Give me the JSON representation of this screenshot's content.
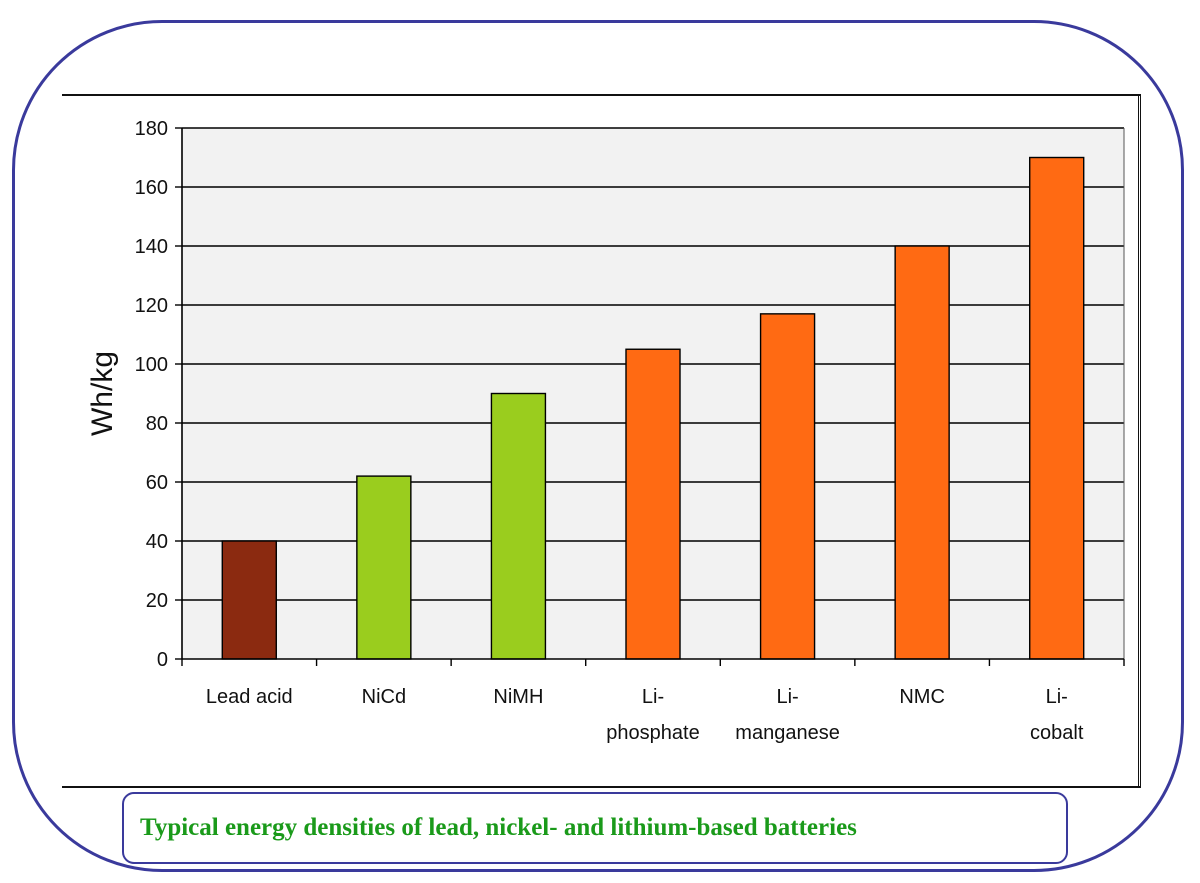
{
  "chart_data": {
    "type": "bar",
    "title": "",
    "xlabel": "",
    "ylabel": "Wh/kg",
    "ylim": [
      0,
      180
    ],
    "yticks": [
      0,
      20,
      40,
      60,
      80,
      100,
      120,
      140,
      160,
      180
    ],
    "grid": true,
    "categories": [
      [
        "Lead acid"
      ],
      [
        "NiCd"
      ],
      [
        "NiMH"
      ],
      [
        "Li-",
        "phosphate"
      ],
      [
        "Li-",
        "manganese"
      ],
      [
        "NMC"
      ],
      [
        "Li-",
        "cobalt"
      ]
    ],
    "values": [
      40,
      62,
      90,
      105,
      117,
      140,
      170
    ],
    "colors": [
      "#8b2a10",
      "#9acd1e",
      "#9acd1e",
      "#ff6a13",
      "#ff6a13",
      "#ff6a13",
      "#ff6a13"
    ],
    "plot_background": "#f2f2f2"
  },
  "caption": "Typical energy densities of lead, nickel- and lithium-based batteries"
}
